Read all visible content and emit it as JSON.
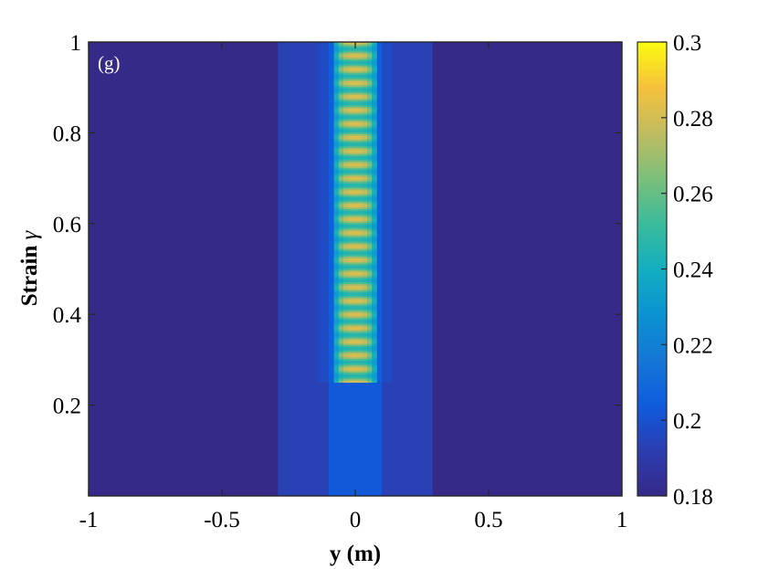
{
  "chart_data": {
    "type": "heatmap",
    "panel_label": "(g)",
    "xlabel": "y (m)",
    "ylabel": "Strain γ",
    "ylabel_main": "Strain",
    "ylabel_symbol": "γ",
    "xlim": [
      -1,
      1
    ],
    "ylim": [
      0,
      1
    ],
    "xticks": [
      -1,
      -0.5,
      0,
      0.5,
      1
    ],
    "xtick_labels": [
      "-1",
      "-0.5",
      "0",
      "0.5",
      "1"
    ],
    "yticks": [
      0.2,
      0.4,
      0.6,
      0.8,
      1
    ],
    "ytick_labels": [
      "0.2",
      "0.4",
      "0.6",
      "0.8",
      "1"
    ],
    "colorbar": {
      "colormap": "parula",
      "range": [
        0.18,
        0.3
      ],
      "ticks": [
        0.18,
        0.2,
        0.22,
        0.24,
        0.26,
        0.28,
        0.3
      ],
      "tick_labels": [
        "0.18",
        "0.2",
        "0.22",
        "0.24",
        "0.26",
        "0.28",
        "0.3"
      ]
    },
    "field": {
      "background_value": 0.18,
      "outer_band": {
        "y_range": [
          -0.29,
          0.29
        ],
        "strain_range": [
          0,
          1
        ],
        "value": 0.193
      },
      "middle_band_lower": {
        "y_range": [
          -0.1,
          0.1
        ],
        "strain_range": [
          0,
          0.25
        ],
        "value": 0.203
      },
      "middle_band_upper": {
        "y_range": [
          -0.14,
          0.14
        ],
        "strain_range": [
          0.25,
          1
        ],
        "value": 0.197
      },
      "inner_edge": {
        "y_range": [
          -0.1,
          0.1
        ],
        "strain_range": [
          0.25,
          1
        ],
        "value": 0.205
      },
      "shear_band": {
        "y_range": [
          -0.08,
          0.08
        ],
        "strain_range": [
          0.25,
          1
        ],
        "oscillation_count": 25,
        "value_min": 0.245,
        "value_max": 0.283,
        "edge_value": 0.225
      }
    }
  }
}
